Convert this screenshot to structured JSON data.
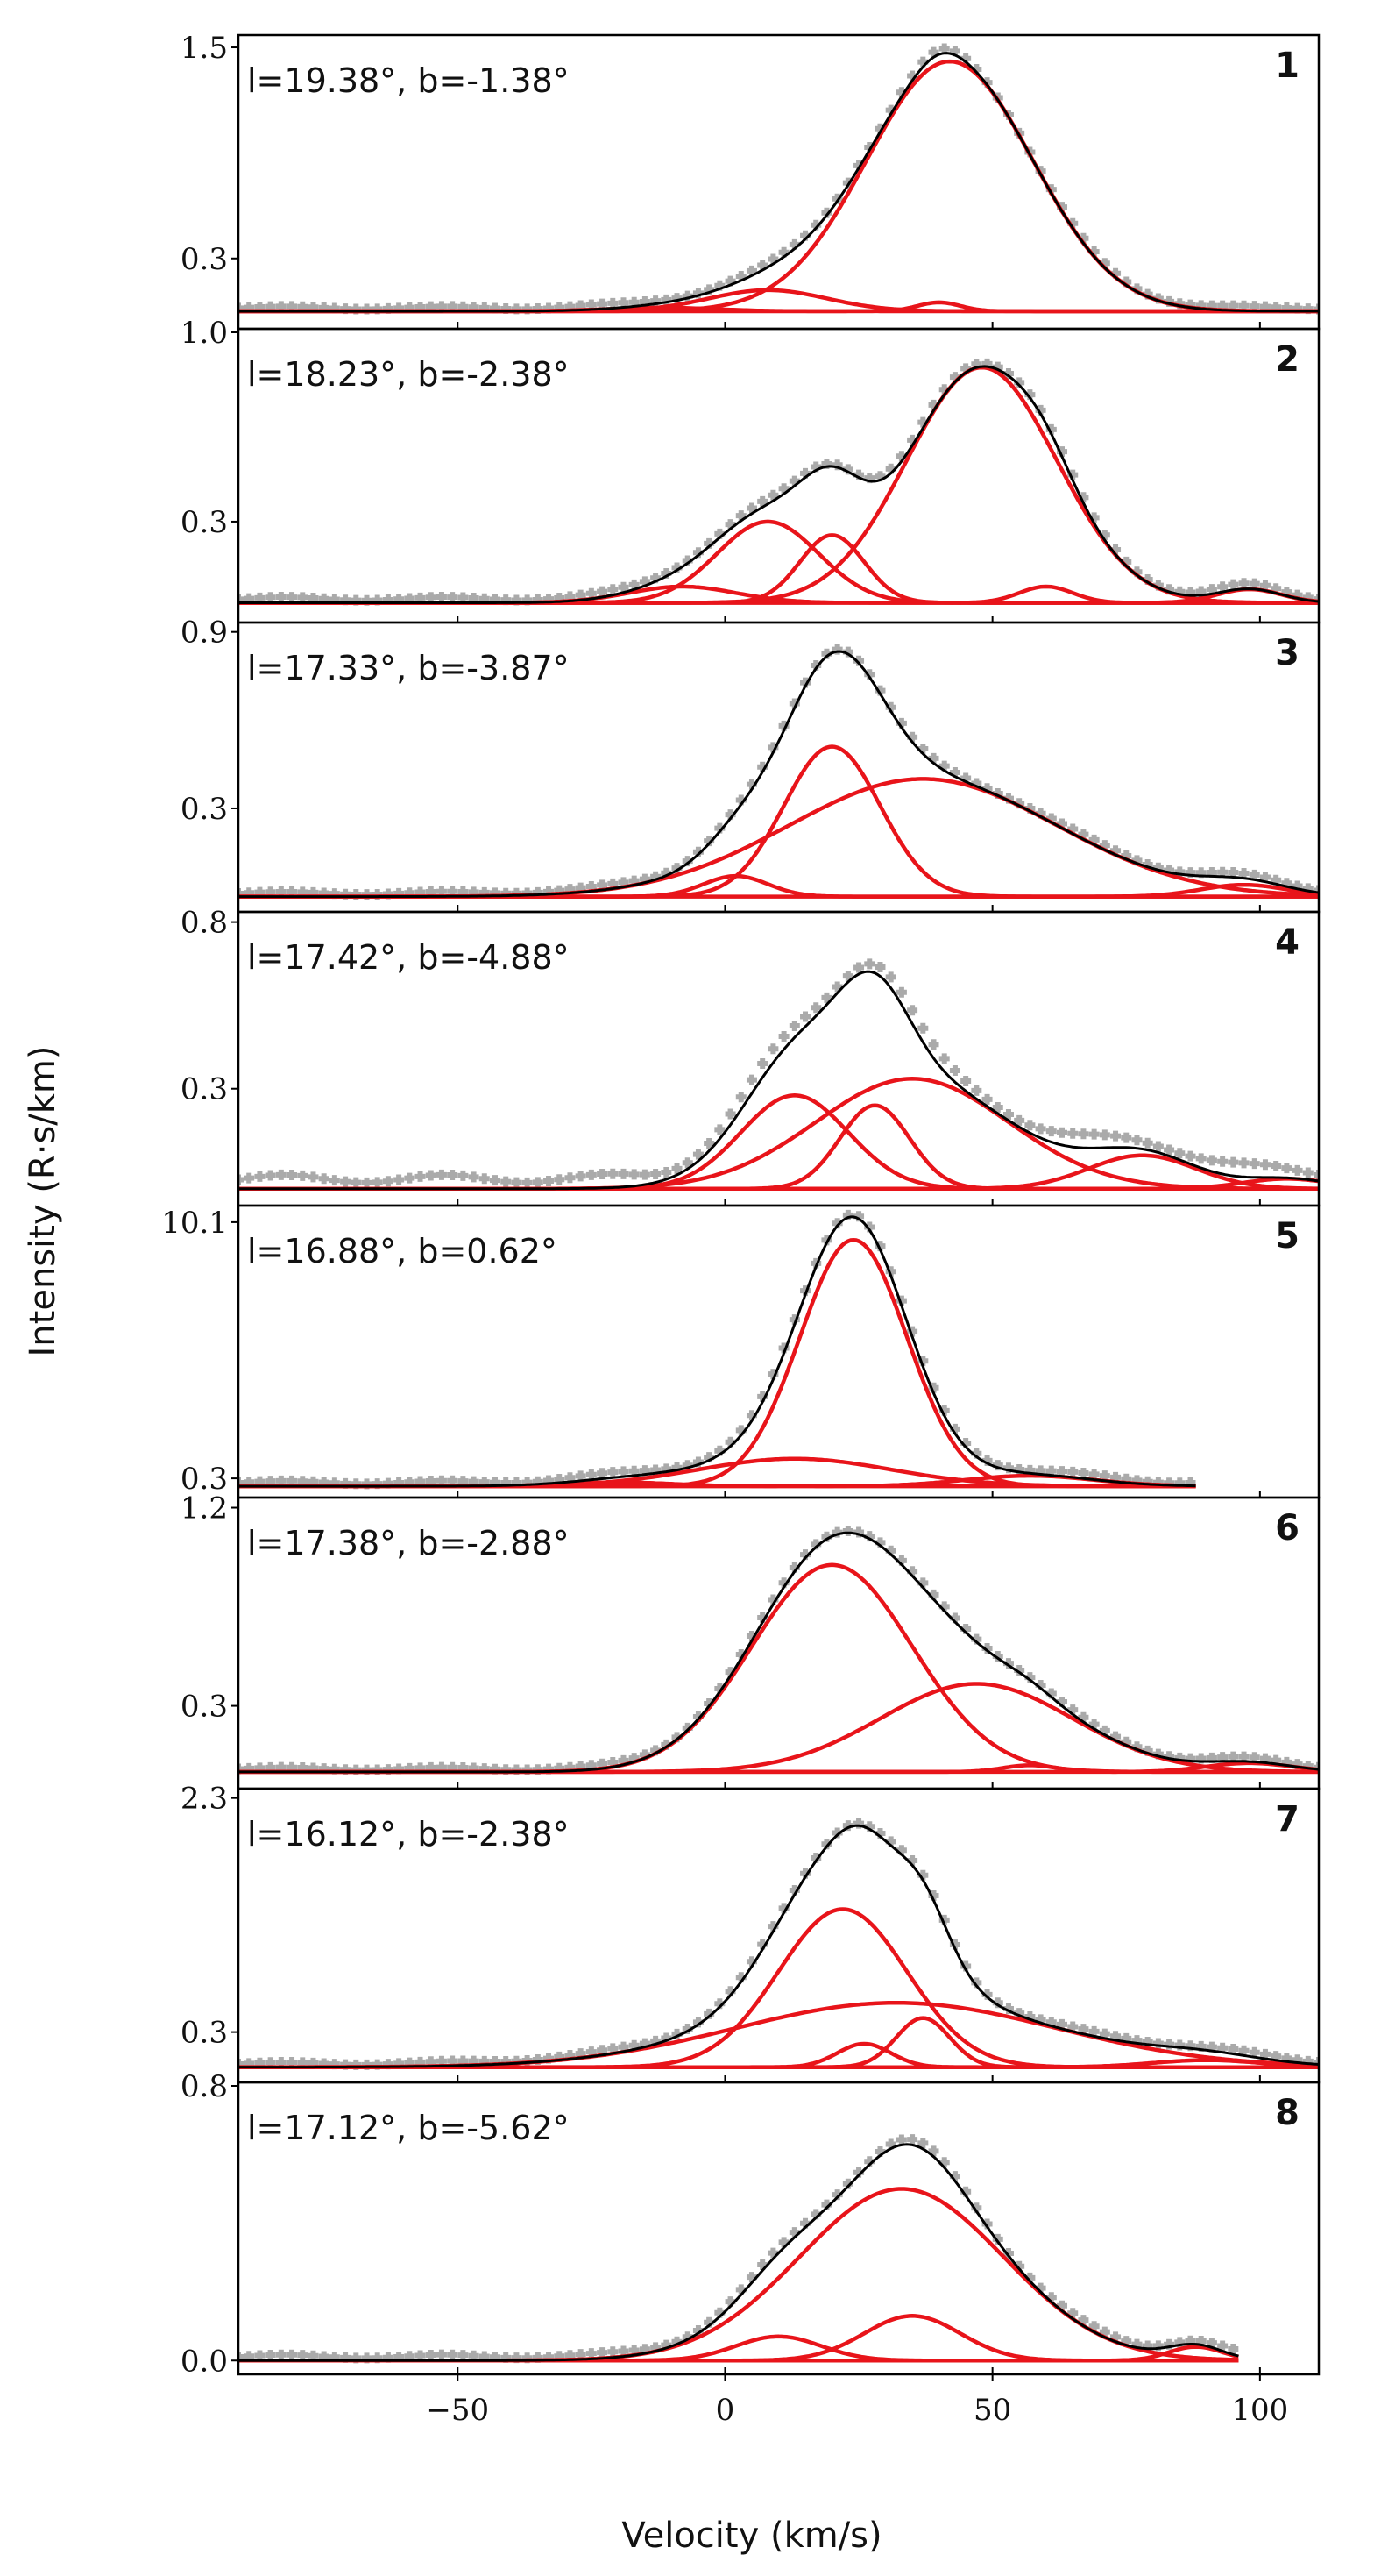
{
  "chart_data": {
    "type": "line",
    "title": "",
    "xlabel": "Velocity (km/s)",
    "ylabel": "Intensity (R·s/km)",
    "xlim": [
      -91,
      111
    ],
    "xticks": [
      -50,
      0,
      50,
      100
    ],
    "xtick_labels": [
      "−50",
      "0",
      "50",
      "100"
    ],
    "series_styles": {
      "observed": "#aaaaaa",
      "component": "#e8141a",
      "total_fit": "#000000"
    },
    "panels": [
      {
        "number": "1",
        "coord_label": "l=19.38°, b=-1.38°",
        "ylim": [
          -0.08,
          1.55
        ],
        "ytick_values": [
          0.3,
          1.5
        ],
        "ytick_labels": [
          "0.3",
          "1.5"
        ],
        "observed": {
          "v_start": -91,
          "v_end": 111,
          "v_step": 2,
          "offset": 0.02
        },
        "components": [
          {
            "amplitude": 0.12,
            "center": 8,
            "sigma": 11
          },
          {
            "amplitude": 0.05,
            "center": 40,
            "sigma": 4
          },
          {
            "amplitude": 0.02,
            "center": -12,
            "sigma": 10
          },
          {
            "amplitude": 1.42,
            "center": 42,
            "sigma": 15.5
          }
        ]
      },
      {
        "number": "2",
        "coord_label": "l=18.23°, b=-2.38°",
        "ylim": [
          -0.06,
          1.0
        ],
        "ytick_values": [
          0.3,
          1.0
        ],
        "ytick_labels": [
          "0.3",
          "1.0"
        ],
        "observed": {
          "v_start": -91,
          "v_end": 111,
          "v_step": 2,
          "offset": 0.015
        },
        "components": [
          {
            "amplitude": 0.3,
            "center": 8,
            "sigma": 9.5
          },
          {
            "amplitude": 0.25,
            "center": 20,
            "sigma": 6
          },
          {
            "amplitude": 0.06,
            "center": -8,
            "sigma": 10
          },
          {
            "amplitude": 0.87,
            "center": 48,
            "sigma": 14
          },
          {
            "amplitude": 0.06,
            "center": 60,
            "sigma": 5
          },
          {
            "amplitude": 0.05,
            "center": 98,
            "sigma": 6
          }
        ]
      },
      {
        "number": "3",
        "coord_label": "l=17.33°, b=-3.87°",
        "ylim": [
          -0.04,
          0.92
        ],
        "ytick_values": [
          0.3,
          0.9
        ],
        "ytick_labels": [
          "0.3",
          "0.9"
        ],
        "observed": {
          "v_start": -91,
          "v_end": 111,
          "v_step": 2,
          "offset": 0.012
        },
        "components": [
          {
            "amplitude": 0.51,
            "center": 20,
            "sigma": 9
          },
          {
            "amplitude": 0.07,
            "center": 2,
            "sigma": 6
          },
          {
            "amplitude": 0.4,
            "center": 37,
            "sigma": 25
          },
          {
            "amplitude": 0.04,
            "center": 97,
            "sigma": 8
          }
        ]
      },
      {
        "number": "4",
        "coord_label": "l=17.42°, b=-4.88°",
        "ylim": [
          -0.04,
          0.82
        ],
        "ytick_values": [
          0.3,
          0.8
        ],
        "ytick_labels": [
          "0.3",
          "0.8"
        ],
        "observed": {
          "v_start": -91,
          "v_end": 111,
          "v_step": 2,
          "offset": 0.03
        },
        "components": [
          {
            "amplitude": 0.28,
            "center": 13,
            "sigma": 10
          },
          {
            "amplitude": 0.25,
            "center": 28,
            "sigma": 6.5
          },
          {
            "amplitude": 0.33,
            "center": 35,
            "sigma": 18
          },
          {
            "amplitude": 0.1,
            "center": 78,
            "sigma": 10
          },
          {
            "amplitude": 0.03,
            "center": 105,
            "sigma": 8
          }
        ]
      },
      {
        "number": "5",
        "coord_label": "l=16.88°, b=0.62°",
        "ylim": [
          -0.3,
          10.6
        ],
        "ytick_values": [
          0.3,
          10.1
        ],
        "ytick_labels": [
          "0.3",
          "10.1"
        ],
        "observed": {
          "v_start": -91,
          "v_end": 88,
          "v_step": 2,
          "offset": 0.15
        },
        "components": [
          {
            "amplitude": 9.42,
            "center": 24,
            "sigma": 10
          },
          {
            "amplitude": 1.05,
            "center": 13,
            "sigma": 18
          },
          {
            "amplitude": 0.4,
            "center": 57,
            "sigma": 12
          },
          {
            "amplitude": 0.15,
            "center": -20,
            "sigma": 10
          }
        ],
        "fit_end": 88
      },
      {
        "number": "6",
        "coord_label": "l=17.38°, b=-2.88°",
        "ylim": [
          -0.06,
          1.23
        ],
        "ytick_values": [
          0.3,
          1.2
        ],
        "ytick_labels": [
          "0.3",
          "1.2"
        ],
        "observed": {
          "v_start": -91,
          "v_end": 111,
          "v_step": 2,
          "offset": 0.015
        },
        "components": [
          {
            "amplitude": 0.94,
            "center": 20,
            "sigma": 15
          },
          {
            "amplitude": 0.4,
            "center": 47,
            "sigma": 18
          },
          {
            "amplitude": 0.03,
            "center": 57,
            "sigma": 5
          },
          {
            "amplitude": 0.04,
            "center": 98,
            "sigma": 8
          }
        ]
      },
      {
        "number": "7",
        "coord_label": "l=16.12°, b=-2.38°",
        "ylim": [
          -0.1,
          2.35
        ],
        "ytick_values": [
          0.3,
          2.3
        ],
        "ytick_labels": [
          "0.3",
          "2.3"
        ],
        "observed": {
          "v_start": -91,
          "v_end": 111,
          "v_step": 2,
          "offset": 0.03
        },
        "components": [
          {
            "amplitude": 1.35,
            "center": 22,
            "sigma": 12
          },
          {
            "amplitude": 0.55,
            "center": 32,
            "sigma": 30
          },
          {
            "amplitude": 0.2,
            "center": 26,
            "sigma": 5
          },
          {
            "amplitude": 0.42,
            "center": 37,
            "sigma": 5
          },
          {
            "amplitude": 0.06,
            "center": 90,
            "sigma": 10
          }
        ]
      },
      {
        "number": "8",
        "coord_label": "l=17.12°, b=-5.62°",
        "ylim": [
          -0.03,
          0.8
        ],
        "ytick_values": [
          0.0,
          0.8
        ],
        "ytick_labels": [
          "0.0",
          "0.8"
        ],
        "observed": {
          "v_start": -91,
          "v_end": 96,
          "v_step": 2,
          "offset": 0.012
        },
        "components": [
          {
            "amplitude": 0.5,
            "center": 33,
            "sigma": 19
          },
          {
            "amplitude": 0.07,
            "center": 10,
            "sigma": 8
          },
          {
            "amplitude": 0.13,
            "center": 35,
            "sigma": 9
          },
          {
            "amplitude": 0.04,
            "center": 88,
            "sigma": 5
          }
        ],
        "fit_end": 96
      }
    ]
  }
}
